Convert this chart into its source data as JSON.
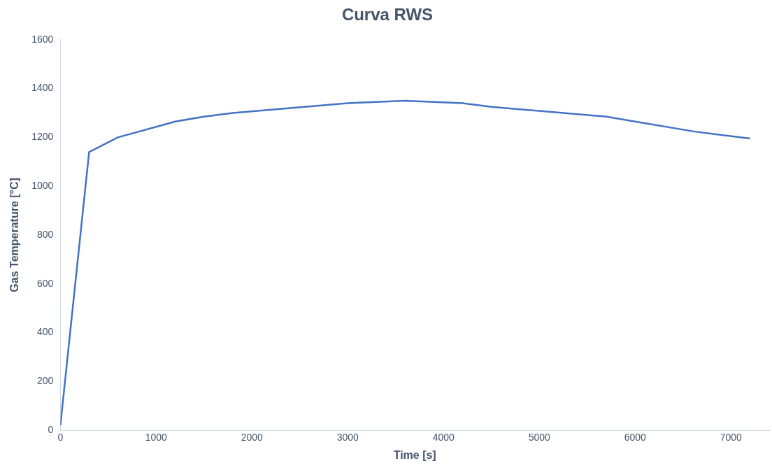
{
  "chart_data": {
    "type": "line",
    "title": "Curva RWS",
    "xlabel": "Time [s]",
    "ylabel": "Gas Temperature [°C]",
    "x": [
      0,
      300,
      600,
      1200,
      1500,
      1800,
      3000,
      3600,
      4200,
      4500,
      5400,
      5700,
      6000,
      6600,
      7200
    ],
    "series": [
      {
        "color": "#4472c4",
        "values": [
          20,
          1140,
          1200,
          1265,
          1285,
          1300,
          1340,
          1350,
          1340,
          1325,
          1295,
          1285,
          1265,
          1225,
          1195
        ]
      }
    ],
    "xlim": [
      0,
      7400
    ],
    "xticks": [
      0,
      1000,
      2000,
      3000,
      4000,
      5000,
      6000,
      7000
    ],
    "ylim": [
      0,
      1600
    ],
    "yticks": [
      0,
      200,
      400,
      600,
      800,
      1000,
      1200,
      1400,
      1600
    ],
    "grid": false,
    "legend": false,
    "marker": "none",
    "line_style": "solid"
  }
}
